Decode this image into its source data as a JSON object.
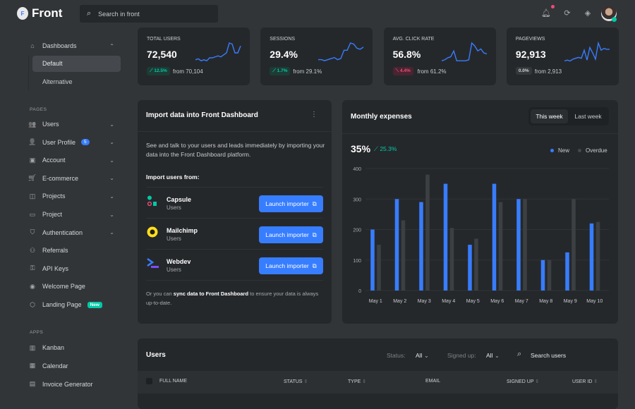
{
  "header": {
    "brand": "Front",
    "search_placeholder": "Search in front",
    "icons": [
      "bell-icon",
      "app-icon",
      "diamond-icon"
    ]
  },
  "sidebar": {
    "dashboards": "Dashboards",
    "sub": [
      "Default",
      "Alternative"
    ],
    "pages_title": "PAGES",
    "pages": [
      {
        "label": "Users",
        "icon": "👥",
        "chev": true
      },
      {
        "label": "User Profile",
        "icon": "👤",
        "chev": true,
        "badge": "5"
      },
      {
        "label": "Account",
        "icon": "▣",
        "chev": true
      },
      {
        "label": "E-commerce",
        "icon": "🛒",
        "chev": true
      },
      {
        "label": "Projects",
        "icon": "◫",
        "chev": true
      },
      {
        "label": "Project",
        "icon": "▭",
        "chev": true
      },
      {
        "label": "Authentication",
        "icon": "⛉",
        "chev": true
      },
      {
        "label": "Referrals",
        "icon": "⚇",
        "chev": false
      },
      {
        "label": "API Keys",
        "icon": "⚿",
        "chev": false
      },
      {
        "label": "Welcome Page",
        "icon": "◉",
        "chev": false
      },
      {
        "label": "Landing Page",
        "icon": "⬡",
        "chev": false,
        "badge_new": "New"
      }
    ],
    "apps_title": "APPS",
    "apps": [
      {
        "label": "Kanban",
        "icon": "▥"
      },
      {
        "label": "Calendar",
        "icon": "▦"
      },
      {
        "label": "Invoice Generator",
        "icon": "▤"
      }
    ]
  },
  "stats": [
    {
      "label": "TOTAL USERS",
      "value": "72,540",
      "change": "12.5%",
      "trend": "up",
      "from": "from 70,104",
      "spark": [
        3,
        4,
        2,
        3,
        2,
        5,
        5,
        6,
        7,
        6,
        8,
        10,
        20,
        19,
        10,
        10,
        17
      ]
    },
    {
      "label": "SESSIONS",
      "value": "29.4%",
      "change": "1.7%",
      "trend": "up",
      "from": "from 29.1%",
      "spark": [
        3,
        3,
        2,
        3,
        4,
        5,
        3,
        4,
        12,
        12,
        19,
        18,
        14,
        13,
        15
      ]
    },
    {
      "label": "AVG. CLICK RATE",
      "value": "56.8%",
      "change": "4.4%",
      "trend": "down",
      "from": "from 61.2%",
      "spark": [
        2,
        3,
        5,
        6,
        12,
        2,
        2,
        2,
        2,
        3,
        20,
        17,
        12,
        14,
        10,
        9
      ]
    },
    {
      "label": "PAGEVIEWS",
      "value": "92,913",
      "change": "0.0%",
      "trend": "flat",
      "from": "from 2,913",
      "spark": [
        2,
        3,
        2,
        4,
        5,
        6,
        5,
        14,
        3,
        17,
        11,
        4,
        22,
        14,
        16,
        15,
        15
      ]
    }
  ],
  "import": {
    "title": "Import data into Front Dashboard",
    "desc": "See and talk to your users and leads immediately by importing your data into the Front Dashboard platform.",
    "subtitle": "Import users from:",
    "items": [
      {
        "name": "Capsule",
        "sub": "Users",
        "button": "Launch importer"
      },
      {
        "name": "Mailchimp",
        "sub": "Users",
        "button": "Launch importer"
      },
      {
        "name": "Webdev",
        "sub": "Users",
        "button": "Launch importer"
      }
    ],
    "foot_pre": "Or you can ",
    "foot_link": "sync data to Front Dashboard",
    "foot_post": " to ensure your data is always up-to-date."
  },
  "expenses": {
    "title": "Monthly expenses",
    "tabs": [
      "This week",
      "Last week"
    ],
    "active_tab": "This week",
    "value": "35%",
    "change": "25.3%"
  },
  "chart_data": {
    "type": "bar",
    "categories": [
      "May 1",
      "May 2",
      "May 3",
      "May 4",
      "May 5",
      "May 6",
      "May 7",
      "May 8",
      "May 9",
      "May 10"
    ],
    "series": [
      {
        "name": "New",
        "color": "#377dff",
        "values": [
          200,
          300,
          290,
          350,
          150,
          350,
          300,
          100,
          125,
          220
        ]
      },
      {
        "name": "Overdue",
        "color": "#3d4043",
        "values": [
          150,
          230,
          380,
          205,
          170,
          290,
          300,
          100,
          300,
          225
        ]
      }
    ],
    "ylim": [
      0,
      400
    ],
    "yticks": [
      0,
      100,
      200,
      300,
      400
    ],
    "grid": true,
    "legend": "top-right"
  },
  "users": {
    "title": "Users",
    "status_label": "Status:",
    "status_value": "All",
    "signed_label": "Signed up:",
    "signed_value": "All",
    "search_placeholder": "Search users",
    "columns": [
      "FULL NAME",
      "STATUS",
      "TYPE",
      "EMAIL",
      "SIGNED UP",
      "USER ID"
    ]
  }
}
